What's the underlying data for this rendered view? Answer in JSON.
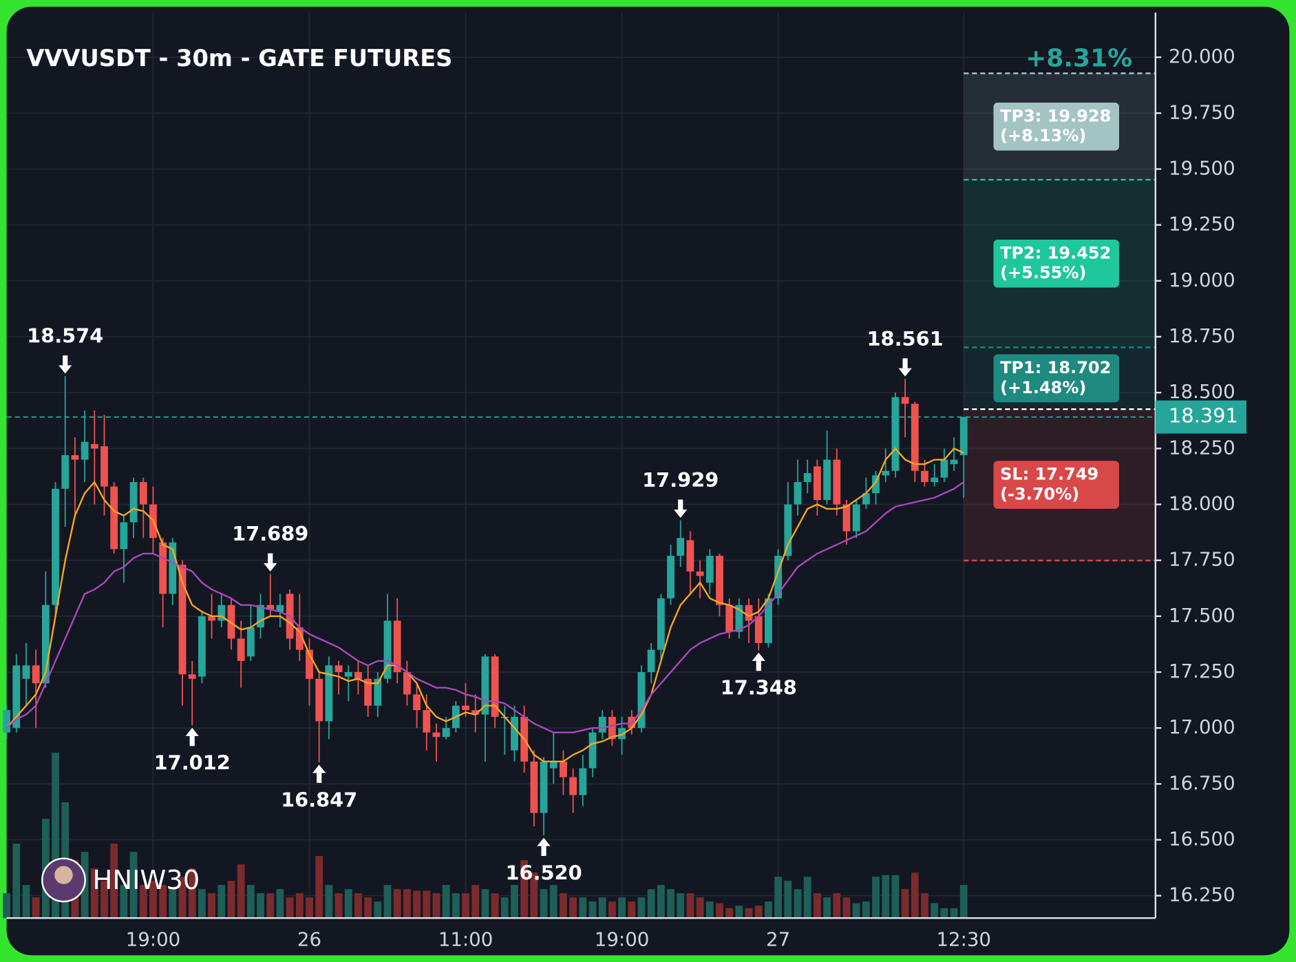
{
  "chart_data": {
    "type": "candlestick",
    "title": "VVVUSDT - 30m - GATE FUTURES",
    "change_label": "+8.31%",
    "watermark": "HNIW30",
    "categories": [
      null,
      null,
      null,
      null,
      null,
      null,
      null,
      null,
      null,
      null,
      null,
      null,
      null,
      null,
      null,
      "19:00",
      null,
      null,
      null,
      null,
      null,
      null,
      null,
      null,
      null,
      null,
      null,
      null,
      null,
      null,
      null,
      "26",
      null,
      null,
      null,
      null,
      null,
      null,
      null,
      null,
      null,
      null,
      null,
      null,
      null,
      null,
      null,
      "11:00",
      null,
      null,
      null,
      null,
      null,
      null,
      null,
      null,
      null,
      null,
      null,
      null,
      null,
      null,
      null,
      "19:00",
      null,
      null,
      null,
      null,
      null,
      null,
      null,
      null,
      null,
      null,
      null,
      null,
      null,
      null,
      null,
      "27",
      null,
      null,
      null,
      null,
      null,
      null,
      null,
      null,
      null,
      null,
      null,
      null,
      null,
      null,
      null,
      null,
      null,
      null,
      "12:30"
    ],
    "open": [
      16.98,
      17.0,
      17.22,
      17.28,
      17.2,
      17.55,
      18.07,
      18.22,
      18.2,
      18.27,
      18.26,
      18.08,
      17.8,
      17.92,
      18.1,
      18.0,
      17.83,
      17.6,
      17.73,
      17.24,
      17.23,
      17.5,
      17.48,
      17.55,
      17.4,
      17.32,
      17.45,
      17.55,
      17.52,
      17.6,
      17.45,
      17.35,
      17.22,
      17.03,
      17.28,
      17.23,
      17.25,
      17.22,
      17.1,
      17.22,
      17.48,
      17.25,
      17.15,
      17.08,
      16.98,
      16.96,
      17.0,
      17.1,
      17.08,
      17.06,
      17.32,
      17.05,
      16.9,
      17.05,
      16.85,
      16.62,
      16.82,
      16.85,
      16.78,
      16.7,
      16.82,
      16.98,
      17.05,
      16.95,
      17.05,
      17.0,
      17.25,
      17.35,
      17.58,
      17.77,
      17.84,
      17.7,
      17.65,
      17.77,
      17.55,
      17.43,
      17.55,
      17.5,
      17.38,
      17.58,
      17.77,
      18.0,
      18.1,
      18.17,
      18.02,
      18.2,
      18.0,
      17.88,
      18.0,
      18.05,
      18.13,
      18.15,
      18.48,
      18.45,
      18.15,
      18.1,
      18.12,
      18.18,
      18.22
    ],
    "high": [
      17.1,
      17.33,
      17.38,
      17.35,
      17.7,
      18.1,
      18.574,
      18.3,
      18.42,
      18.42,
      18.4,
      18.1,
      17.95,
      18.12,
      18.12,
      18.08,
      17.85,
      17.85,
      17.75,
      17.3,
      17.52,
      17.6,
      17.6,
      17.58,
      17.48,
      17.55,
      17.6,
      17.689,
      17.6,
      17.62,
      17.6,
      17.4,
      17.25,
      17.32,
      17.3,
      17.28,
      17.3,
      17.28,
      17.25,
      17.6,
      17.58,
      17.3,
      17.2,
      17.15,
      17.02,
      17.05,
      17.12,
      17.2,
      17.15,
      17.33,
      17.33,
      17.1,
      17.1,
      17.1,
      16.9,
      16.87,
      16.98,
      16.9,
      16.82,
      16.88,
      17.0,
      17.08,
      17.08,
      17.05,
      17.08,
      17.28,
      17.38,
      17.6,
      17.82,
      17.929,
      17.88,
      17.75,
      17.8,
      17.78,
      17.58,
      17.58,
      17.58,
      17.58,
      17.6,
      17.8,
      18.1,
      18.2,
      18.2,
      18.2,
      18.33,
      18.25,
      18.02,
      18.02,
      18.12,
      18.15,
      18.25,
      18.5,
      18.561,
      18.46,
      18.2,
      18.18,
      18.25,
      18.3,
      18.391
    ],
    "low": [
      16.95,
      16.98,
      17.1,
      17.0,
      17.18,
      17.5,
      17.9,
      17.95,
      18.1,
      18.0,
      17.95,
      17.78,
      17.65,
      17.85,
      17.85,
      17.78,
      17.45,
      17.55,
      17.1,
      17.012,
      17.2,
      17.4,
      17.45,
      17.35,
      17.18,
      17.3,
      17.4,
      17.5,
      17.45,
      17.35,
      17.3,
      17.1,
      16.847,
      16.95,
      17.15,
      17.12,
      17.15,
      17.05,
      17.05,
      17.2,
      17.2,
      17.1,
      17.0,
      16.9,
      16.85,
      16.95,
      16.98,
      17.05,
      16.98,
      16.85,
      17.0,
      16.88,
      16.85,
      16.8,
      16.56,
      16.52,
      16.75,
      16.7,
      16.62,
      16.65,
      16.78,
      16.95,
      16.92,
      16.88,
      16.97,
      16.98,
      17.2,
      17.3,
      17.55,
      17.72,
      17.6,
      17.58,
      17.6,
      17.5,
      17.4,
      17.4,
      17.38,
      17.348,
      17.36,
      17.55,
      17.75,
      17.95,
      18.05,
      17.95,
      18.0,
      17.95,
      17.82,
      17.85,
      17.98,
      18.0,
      18.1,
      18.12,
      18.3,
      18.1,
      18.08,
      18.08,
      18.1,
      18.15,
      18.03
    ],
    "close": [
      17.08,
      17.28,
      17.28,
      17.2,
      17.55,
      18.07,
      18.22,
      18.2,
      18.28,
      18.25,
      18.08,
      17.8,
      17.92,
      18.1,
      18.0,
      17.85,
      17.6,
      17.83,
      17.24,
      17.22,
      17.5,
      17.48,
      17.55,
      17.4,
      17.3,
      17.45,
      17.55,
      17.53,
      17.55,
      17.4,
      17.35,
      17.22,
      17.03,
      17.28,
      17.25,
      17.25,
      17.22,
      17.1,
      17.22,
      17.48,
      17.25,
      17.15,
      17.08,
      16.98,
      16.96,
      17.0,
      17.1,
      17.08,
      17.06,
      17.32,
      17.05,
      17.05,
      17.05,
      16.85,
      16.62,
      16.85,
      16.85,
      16.78,
      16.7,
      16.82,
      16.98,
      17.05,
      16.95,
      17.0,
      17.0,
      17.25,
      17.35,
      17.58,
      17.77,
      17.85,
      17.7,
      17.68,
      17.77,
      17.55,
      17.43,
      17.55,
      17.48,
      17.38,
      17.58,
      17.77,
      18.0,
      18.1,
      18.14,
      18.02,
      18.2,
      18.0,
      17.88,
      18.0,
      18.05,
      18.13,
      18.15,
      18.48,
      18.45,
      18.15,
      18.1,
      18.12,
      18.2,
      18.2,
      18.391
    ],
    "volume": [
      30,
      90,
      40,
      25,
      120,
      200,
      140,
      70,
      80,
      60,
      45,
      90,
      40,
      80,
      40,
      45,
      40,
      35,
      50,
      60,
      35,
      30,
      40,
      45,
      65,
      40,
      30,
      30,
      35,
      25,
      30,
      25,
      75,
      40,
      30,
      35,
      30,
      25,
      20,
      40,
      35,
      35,
      33,
      33,
      30,
      40,
      30,
      30,
      40,
      35,
      30,
      25,
      40,
      70,
      55,
      35,
      40,
      30,
      25,
      25,
      20,
      25,
      20,
      25,
      20,
      25,
      35,
      40,
      35,
      30,
      30,
      25,
      20,
      18,
      12,
      15,
      12,
      15,
      20,
      50,
      45,
      35,
      50,
      30,
      25,
      30,
      25,
      18,
      20,
      50,
      52,
      52,
      35,
      55,
      30,
      18,
      12,
      12,
      40
    ],
    "colors": {
      "up": "#26a69a",
      "down": "#ef5350",
      "up_volume": "#1e5f58",
      "down_volume": "#7b2b2e"
    },
    "lines": [
      {
        "color": "#f5a623",
        "values": [
          17.0,
          17.05,
          17.1,
          17.15,
          17.25,
          17.5,
          17.75,
          17.95,
          18.05,
          18.1,
          18.02,
          17.97,
          17.95,
          17.98,
          17.97,
          17.93,
          17.82,
          17.8,
          17.65,
          17.55,
          17.52,
          17.5,
          17.5,
          17.47,
          17.44,
          17.45,
          17.48,
          17.5,
          17.5,
          17.47,
          17.43,
          17.33,
          17.25,
          17.24,
          17.23,
          17.21,
          17.22,
          17.2,
          17.2,
          17.28,
          17.28,
          17.25,
          17.2,
          17.1,
          17.05,
          17.03,
          17.05,
          17.07,
          17.06,
          17.1,
          17.1,
          17.05,
          17.0,
          16.95,
          16.88,
          16.85,
          16.85,
          16.85,
          16.88,
          16.9,
          16.93,
          16.94,
          16.96,
          16.97,
          17.0,
          17.06,
          17.15,
          17.3,
          17.45,
          17.55,
          17.6,
          17.65,
          17.58,
          17.56,
          17.55,
          17.53,
          17.5,
          17.52,
          17.58,
          17.7,
          17.82,
          17.9,
          17.98,
          18.0,
          17.98,
          17.98,
          17.99,
          18.02,
          18.05,
          18.1,
          18.2,
          18.25,
          18.2,
          18.18,
          18.18,
          18.2,
          18.2,
          18.25,
          18.23
        ]
      },
      {
        "color": "#ab47bc",
        "values": [
          17.0,
          17.04,
          17.06,
          17.1,
          17.2,
          17.3,
          17.4,
          17.5,
          17.6,
          17.62,
          17.65,
          17.7,
          17.72,
          17.76,
          17.78,
          17.78,
          17.76,
          17.74,
          17.72,
          17.7,
          17.65,
          17.62,
          17.6,
          17.58,
          17.55,
          17.55,
          17.54,
          17.53,
          17.52,
          17.5,
          17.45,
          17.42,
          17.4,
          17.38,
          17.36,
          17.33,
          17.3,
          17.28,
          17.3,
          17.3,
          17.28,
          17.25,
          17.22,
          17.2,
          17.18,
          17.18,
          17.17,
          17.15,
          17.14,
          17.12,
          17.12,
          17.11,
          17.08,
          17.05,
          17.02,
          17.0,
          16.98,
          16.98,
          16.98,
          16.99,
          17.0,
          17.0,
          17.01,
          17.02,
          17.02,
          17.08,
          17.15,
          17.2,
          17.25,
          17.3,
          17.35,
          17.38,
          17.4,
          17.42,
          17.43,
          17.44,
          17.46,
          17.5,
          17.55,
          17.6,
          17.66,
          17.72,
          17.75,
          17.78,
          17.8,
          17.82,
          17.84,
          17.86,
          17.88,
          17.92,
          17.96,
          17.99,
          18.0,
          18.01,
          18.02,
          18.03,
          18.05,
          18.07,
          18.1
        ]
      }
    ],
    "annotations": [
      {
        "index": 6,
        "value": 18.574,
        "label": "18.574",
        "kind": "high"
      },
      {
        "index": 19,
        "value": 17.012,
        "label": "17.012",
        "kind": "low"
      },
      {
        "index": 27,
        "value": 17.689,
        "label": "17.689",
        "kind": "high"
      },
      {
        "index": 32,
        "value": 16.847,
        "label": "16.847",
        "kind": "low"
      },
      {
        "index": 55,
        "value": 16.52,
        "label": "16.520",
        "kind": "low"
      },
      {
        "index": 69,
        "value": 17.929,
        "label": "17.929",
        "kind": "high"
      },
      {
        "index": 77,
        "value": 17.348,
        "label": "17.348",
        "kind": "low"
      },
      {
        "index": 92,
        "value": 18.561,
        "label": "18.561",
        "kind": "high"
      }
    ],
    "entry": 18.426,
    "last": {
      "value": 18.391,
      "label": "18.391",
      "color": "#26a69a"
    },
    "levels": [
      {
        "value": 19.928,
        "label": "TP3: 19.928",
        "change": "(+8.13%)",
        "color": "#a3c4c2",
        "kind": "tp"
      },
      {
        "value": 19.452,
        "label": "TP2: 19.452",
        "change": "(+5.55%)",
        "color": "#1fc79c",
        "kind": "tp"
      },
      {
        "value": 18.702,
        "label": "TP1: 18.702",
        "change": "(+1.48%)",
        "color": "#1e8a80",
        "kind": "tp"
      },
      {
        "value": 17.749,
        "label": "SL: 17.749",
        "change": "(-3.70%)",
        "color": "#d94848",
        "kind": "sl"
      }
    ],
    "ylim": [
      16.15,
      20.2
    ],
    "yticks": [
      {
        "value": 16.25,
        "label": "16.250"
      },
      {
        "value": 16.5,
        "label": "16.500"
      },
      {
        "value": 16.75,
        "label": "16.750"
      },
      {
        "value": 17,
        "label": "17.000"
      },
      {
        "value": 17.25,
        "label": "17.250"
      },
      {
        "value": 17.5,
        "label": "17.500"
      },
      {
        "value": 17.75,
        "label": "17.750"
      },
      {
        "value": 18,
        "label": "18.000"
      },
      {
        "value": 18.25,
        "label": "18.250"
      },
      {
        "value": 18.5,
        "label": "18.500"
      },
      {
        "value": 18.75,
        "label": "18.750"
      },
      {
        "value": 19,
        "label": "19.000"
      },
      {
        "value": 19.25,
        "label": "19.250"
      },
      {
        "value": 19.5,
        "label": "19.500"
      },
      {
        "value": 19.75,
        "label": "19.750"
      },
      {
        "value": 20,
        "label": "20.000"
      }
    ],
    "grid": true
  }
}
